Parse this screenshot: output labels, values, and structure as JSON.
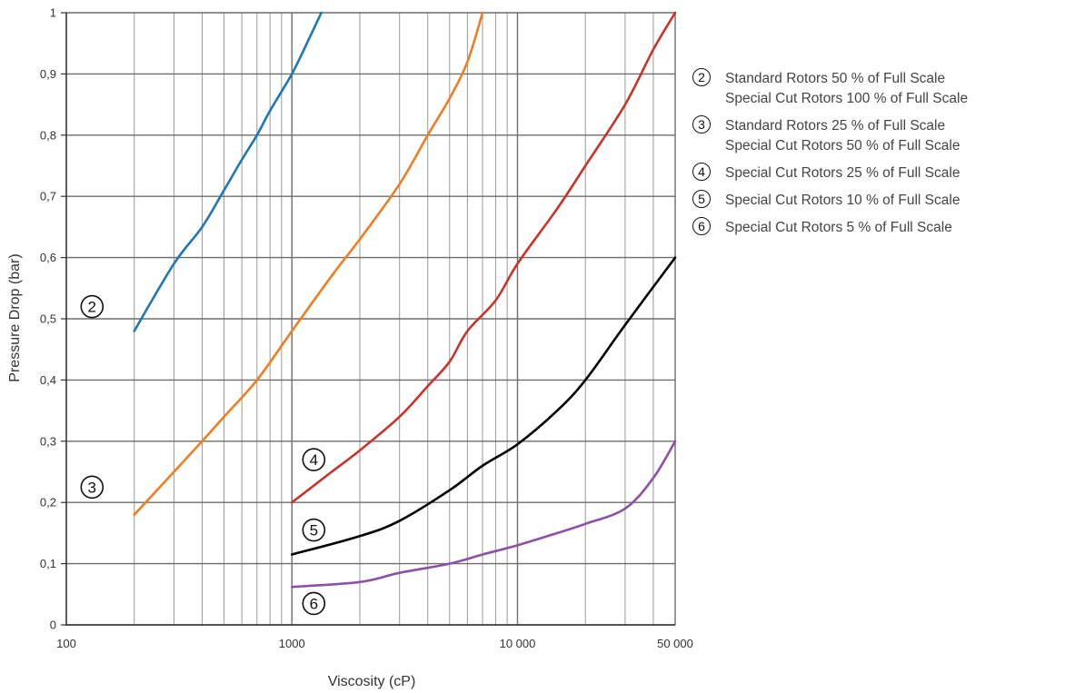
{
  "chart_data": {
    "type": "line",
    "title": "",
    "xlabel": "Viscosity (cP)",
    "ylabel": "Pressure Drop (bar)",
    "xscale": "log",
    "xlim": [
      100,
      50000
    ],
    "ylim": [
      0,
      1
    ],
    "grid": true,
    "legend_position": "right",
    "x_ticks": [
      {
        "value": 100,
        "label": "100"
      },
      {
        "value": 1000,
        "label": "1000"
      },
      {
        "value": 10000,
        "label": "10 000"
      },
      {
        "value": 50000,
        "label": "50 000"
      }
    ],
    "y_ticks": [
      {
        "value": 0,
        "label": "0"
      },
      {
        "value": 0.1,
        "label": "0,1"
      },
      {
        "value": 0.2,
        "label": "0,2"
      },
      {
        "value": 0.3,
        "label": "0,3"
      },
      {
        "value": 0.4,
        "label": "0,4"
      },
      {
        "value": 0.5,
        "label": "0,5"
      },
      {
        "value": 0.6,
        "label": "0,6"
      },
      {
        "value": 0.7,
        "label": "0,7"
      },
      {
        "value": 0.8,
        "label": "0,8"
      },
      {
        "value": 0.9,
        "label": "0,9"
      },
      {
        "value": 1,
        "label": "1"
      }
    ],
    "series": [
      {
        "marker": "2",
        "color": "#1f77b4",
        "label_lines": [
          "Standard Rotors 50 % of Full Scale",
          "Special Cut Rotors 100 % of Full Scale"
        ],
        "marker_at": {
          "x": 130,
          "y": 0.52
        },
        "points": [
          [
            200,
            0.48
          ],
          [
            300,
            0.59
          ],
          [
            400,
            0.65
          ],
          [
            500,
            0.71
          ],
          [
            600,
            0.76
          ],
          [
            700,
            0.8
          ],
          [
            800,
            0.84
          ],
          [
            1000,
            0.9
          ],
          [
            1200,
            0.96
          ],
          [
            1350,
            1.0
          ]
        ]
      },
      {
        "marker": "3",
        "color": "#ef7d22",
        "label_lines": [
          "Standard Rotors 25 % of Full Scale",
          "Special Cut Rotors 50 % of Full Scale"
        ],
        "marker_at": {
          "x": 130,
          "y": 0.225
        },
        "points": [
          [
            200,
            0.18
          ],
          [
            300,
            0.25
          ],
          [
            400,
            0.3
          ],
          [
            500,
            0.34
          ],
          [
            700,
            0.4
          ],
          [
            1000,
            0.48
          ],
          [
            1500,
            0.57
          ],
          [
            2000,
            0.63
          ],
          [
            3000,
            0.72
          ],
          [
            4000,
            0.8
          ],
          [
            5000,
            0.86
          ],
          [
            6000,
            0.92
          ],
          [
            7000,
            1.0
          ]
        ]
      },
      {
        "marker": "4",
        "color": "#c8332a",
        "label_lines": [
          "Special Cut Rotors 25 % of Full Scale"
        ],
        "marker_at": {
          "x": 1250,
          "y": 0.27
        },
        "points": [
          [
            1000,
            0.2
          ],
          [
            1500,
            0.25
          ],
          [
            2000,
            0.285
          ],
          [
            3000,
            0.34
          ],
          [
            4000,
            0.39
          ],
          [
            5000,
            0.43
          ],
          [
            6000,
            0.48
          ],
          [
            8000,
            0.53
          ],
          [
            10000,
            0.59
          ],
          [
            15000,
            0.68
          ],
          [
            20000,
            0.75
          ],
          [
            30000,
            0.85
          ],
          [
            40000,
            0.94
          ],
          [
            50000,
            1.0
          ]
        ]
      },
      {
        "marker": "5",
        "color": "#000000",
        "label_lines": [
          "Special Cut Rotors 10 % of Full Scale"
        ],
        "marker_at": {
          "x": 1250,
          "y": 0.155
        },
        "points": [
          [
            1000,
            0.115
          ],
          [
            2000,
            0.145
          ],
          [
            3000,
            0.17
          ],
          [
            5000,
            0.22
          ],
          [
            7000,
            0.26
          ],
          [
            10000,
            0.295
          ],
          [
            15000,
            0.35
          ],
          [
            20000,
            0.4
          ],
          [
            30000,
            0.49
          ],
          [
            50000,
            0.6
          ]
        ]
      },
      {
        "marker": "6",
        "color": "#8d4fa8",
        "label_lines": [
          "Special Cut Rotors 5 % of Full Scale"
        ],
        "marker_at": {
          "x": 1250,
          "y": 0.035
        },
        "points": [
          [
            1000,
            0.062
          ],
          [
            2000,
            0.07
          ],
          [
            3000,
            0.085
          ],
          [
            5000,
            0.1
          ],
          [
            7000,
            0.115
          ],
          [
            10000,
            0.13
          ],
          [
            15000,
            0.15
          ],
          [
            20000,
            0.165
          ],
          [
            30000,
            0.19
          ],
          [
            40000,
            0.24
          ],
          [
            50000,
            0.3
          ]
        ]
      }
    ]
  }
}
